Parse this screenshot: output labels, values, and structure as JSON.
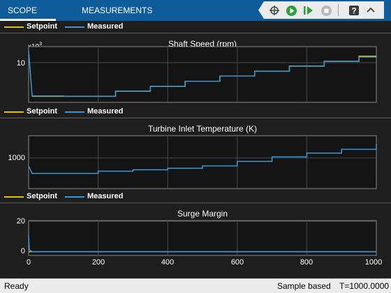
{
  "toolbar": {
    "tabs": [
      {
        "label": "SCOPE",
        "active": true
      },
      {
        "label": "MEASUREMENTS",
        "active": false
      }
    ],
    "buttons": [
      "signal-select-icon",
      "run-icon",
      "step-forward-icon",
      "stop-icon",
      "help-icon",
      "expand-icon"
    ]
  },
  "colors": {
    "toolbar": "#0f5c9a",
    "setpoint": "#e6c000",
    "measured": "#3d95d6",
    "plot_bg": "#141414",
    "grid": "#4a4a4a"
  },
  "legend": {
    "setpoint_label": "Setpoint",
    "measured_label": "Measured"
  },
  "xaxis": {
    "ticks": [
      "0",
      "200",
      "400",
      "600",
      "800",
      "1000"
    ],
    "range": [
      0,
      1000
    ]
  },
  "plots": [
    {
      "title": "Shaft Speed (rpm)",
      "yticks": [
        "10"
      ],
      "exponent_base": "x10",
      "exponent_power": "3"
    },
    {
      "title": "Turbine Inlet Temperature (K)",
      "yticks": [
        "1000"
      ]
    },
    {
      "title": "Surge Margin",
      "yticks": [
        "20",
        "0"
      ]
    }
  ],
  "status": {
    "state": "Ready",
    "mode": "Sample based",
    "time": "T=1000.0000"
  },
  "chart_data": [
    {
      "type": "line",
      "title": "Shaft Speed (rpm)",
      "ylabel": "x10^3",
      "x": [
        0,
        10,
        100,
        200,
        250,
        300,
        350,
        400,
        450,
        500,
        550,
        600,
        650,
        700,
        750,
        800,
        850,
        900,
        950,
        1000
      ],
      "series": [
        {
          "name": "Setpoint",
          "values": [
            null,
            6.25,
            6.25,
            6.25,
            6.9,
            6.9,
            7.5,
            7.5,
            8.15,
            8.15,
            8.8,
            8.8,
            9.4,
            9.4,
            10.05,
            10.05,
            10.65,
            10.65,
            11.3,
            11.3
          ]
        },
        {
          "name": "Measured",
          "values": [
            12.0,
            6.3,
            6.25,
            6.25,
            6.9,
            6.9,
            7.5,
            7.5,
            8.15,
            8.15,
            8.8,
            8.8,
            9.4,
            9.4,
            10.05,
            10.05,
            10.65,
            10.65,
            11.2,
            11.2
          ]
        }
      ],
      "ylim": [
        5.5,
        12.5
      ],
      "xlim": [
        0,
        1000
      ],
      "grid": true,
      "legend": "top-left"
    },
    {
      "type": "line",
      "title": "Turbine Inlet Temperature (K)",
      "x": [
        0,
        10,
        100,
        200,
        300,
        400,
        500,
        600,
        700,
        800,
        900,
        1000
      ],
      "series": [
        {
          "name": "Measured",
          "values": [
            1000,
            950,
            950,
            965,
            975,
            985,
            1000,
            1030,
            1060,
            1085,
            1110,
            1145
          ]
        }
      ],
      "ylim": [
        850,
        1200
      ],
      "xlim": [
        0,
        1000
      ],
      "grid": true,
      "legend": "top-left"
    },
    {
      "type": "line",
      "title": "Surge Margin",
      "x": [
        0,
        2,
        10,
        1000
      ],
      "series": [
        {
          "name": "Setpoint",
          "values": [
            0.5,
            0.5,
            0.5,
            0.5
          ]
        },
        {
          "name": "Measured",
          "values": [
            12,
            2,
            0.5,
            0.5
          ]
        }
      ],
      "ylim": [
        -2,
        22
      ],
      "xlim": [
        0,
        1000
      ],
      "grid": true,
      "legend": "top-left"
    }
  ]
}
